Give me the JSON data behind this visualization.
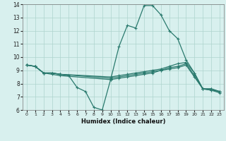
{
  "xlabel": "Humidex (Indice chaleur)",
  "bg_color": "#d8f0ee",
  "line_color": "#2a7a6e",
  "grid_color": "#aed4ce",
  "xlim": [
    -0.5,
    23.5
  ],
  "ylim": [
    6,
    14
  ],
  "xticks": [
    0,
    1,
    2,
    3,
    4,
    5,
    6,
    7,
    8,
    9,
    10,
    11,
    12,
    13,
    14,
    15,
    16,
    17,
    18,
    19,
    20,
    21,
    22,
    23
  ],
  "yticks": [
    6,
    7,
    8,
    9,
    10,
    11,
    12,
    13,
    14
  ],
  "lines": [
    {
      "x": [
        0,
        1,
        2,
        3,
        4,
        5,
        6,
        7,
        8,
        9,
        10,
        11,
        12,
        13,
        14,
        15,
        16,
        17,
        18,
        19,
        20,
        21,
        22,
        23
      ],
      "y": [
        9.4,
        9.3,
        8.8,
        8.8,
        8.7,
        8.6,
        7.7,
        7.4,
        6.2,
        6.0,
        8.3,
        10.8,
        12.4,
        12.2,
        13.9,
        13.9,
        13.2,
        12.0,
        11.4,
        9.8,
        8.8,
        7.6,
        7.6,
        7.4
      ]
    },
    {
      "x": [
        0,
        1,
        2,
        3,
        4,
        10,
        11,
        12,
        13,
        14,
        15,
        16,
        17,
        18,
        19,
        20,
        21,
        22,
        23
      ],
      "y": [
        9.4,
        9.3,
        8.8,
        8.8,
        8.7,
        8.5,
        8.6,
        8.7,
        8.8,
        8.9,
        9.0,
        9.1,
        9.3,
        9.5,
        9.6,
        8.8,
        7.6,
        7.6,
        7.4
      ]
    },
    {
      "x": [
        0,
        1,
        2,
        3,
        4,
        10,
        11,
        12,
        13,
        14,
        15,
        16,
        17,
        18,
        19,
        20,
        21,
        22,
        23
      ],
      "y": [
        9.4,
        9.3,
        8.8,
        8.8,
        8.7,
        8.4,
        8.5,
        8.6,
        8.7,
        8.8,
        8.9,
        9.0,
        9.2,
        9.3,
        9.5,
        8.6,
        7.6,
        7.5,
        7.4
      ]
    },
    {
      "x": [
        0,
        1,
        2,
        3,
        4,
        10,
        11,
        12,
        13,
        14,
        15,
        16,
        17,
        18,
        19,
        20,
        21,
        22,
        23
      ],
      "y": [
        9.4,
        9.3,
        8.8,
        8.7,
        8.6,
        8.3,
        8.4,
        8.5,
        8.6,
        8.7,
        8.8,
        9.0,
        9.1,
        9.2,
        9.4,
        8.5,
        7.6,
        7.5,
        7.3
      ]
    }
  ]
}
